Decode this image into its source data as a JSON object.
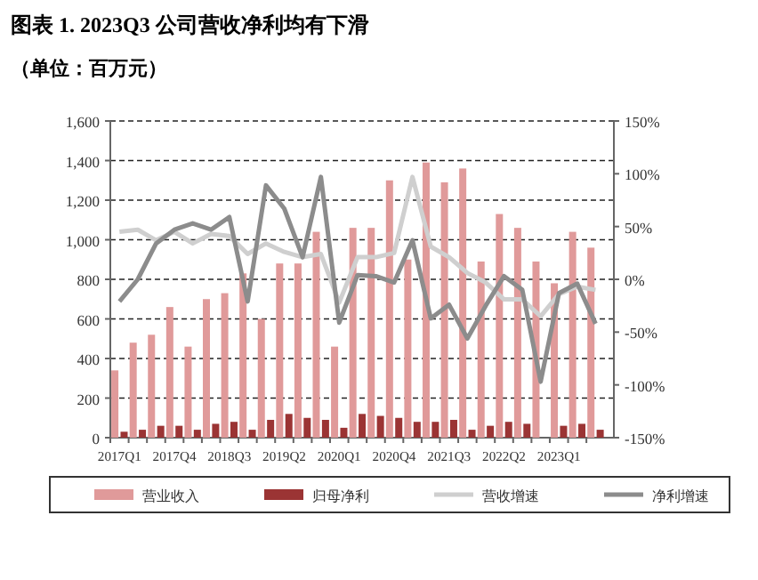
{
  "chart_data": {
    "type": "bar",
    "title": "图表 1. 2023Q3 公司营收净利均有下滑",
    "subtitle": "（单位：百万元）",
    "categories": [
      "2017Q1",
      null,
      null,
      "2017Q4",
      null,
      null,
      "2018Q3",
      null,
      null,
      "2019Q2",
      null,
      null,
      "2020Q1",
      null,
      null,
      "2020Q4",
      null,
      null,
      "2021Q3",
      null,
      null,
      "2022Q2",
      null,
      null,
      "2023Q1",
      null,
      null
    ],
    "series": [
      {
        "name": "营业收入",
        "color": "#e09a9a",
        "values": [
          340,
          480,
          520,
          660,
          460,
          700,
          730,
          830,
          600,
          880,
          880,
          1040,
          460,
          1060,
          1060,
          1300,
          900,
          1390,
          1290,
          1360,
          890,
          1130,
          1060,
          890,
          780,
          1040,
          960
        ]
      },
      {
        "name": "归母净利",
        "color": "#9b3434",
        "values": [
          30,
          40,
          60,
          60,
          40,
          70,
          80,
          40,
          90,
          120,
          100,
          90,
          50,
          120,
          110,
          100,
          80,
          80,
          90,
          40,
          60,
          80,
          70,
          0,
          60,
          70,
          40
        ]
      },
      {
        "name": "营收增速",
        "type": "line",
        "axis": "y2",
        "color": "#cfcfcf",
        "values": [
          45,
          47,
          37,
          45,
          34,
          43,
          41,
          24,
          34,
          26,
          21,
          24,
          -22,
          21,
          21,
          25,
          97,
          31,
          21,
          6,
          -3,
          -19,
          -19,
          -35,
          -14,
          -7,
          -10
        ]
      },
      {
        "name": "净利增速",
        "type": "line",
        "axis": "y2",
        "color": "#8c8c8c",
        "values": [
          -21,
          0,
          34,
          47,
          53,
          47,
          59,
          -21,
          89,
          67,
          21,
          97,
          -41,
          4,
          3,
          -3,
          37,
          -37,
          -24,
          -56,
          -25,
          3,
          -10,
          -97,
          -13,
          -4,
          -42
        ]
      }
    ],
    "ylim": [
      0,
      1600
    ],
    "yticks": [
      {
        "value": 0,
        "label": "0"
      },
      {
        "value": 200,
        "label": "200"
      },
      {
        "value": 400,
        "label": "400"
      },
      {
        "value": 600,
        "label": "600"
      },
      {
        "value": 800,
        "label": "800"
      },
      {
        "value": 1000,
        "label": "1,000"
      },
      {
        "value": 1200,
        "label": "1,200"
      },
      {
        "value": 1400,
        "label": "1,400"
      },
      {
        "value": 1600,
        "label": "1,600"
      }
    ],
    "y2lim": [
      -150,
      150
    ],
    "y2ticks": [
      {
        "value": -150,
        "label": "-150%"
      },
      {
        "value": -100,
        "label": "-100%"
      },
      {
        "value": -50,
        "label": "-50%"
      },
      {
        "value": 0,
        "label": "0%"
      },
      {
        "value": 50,
        "label": "50%"
      },
      {
        "value": 100,
        "label": "100%"
      },
      {
        "value": 150,
        "label": "150%"
      }
    ],
    "grid": "y",
    "legend": "bottom",
    "line_style": "solid",
    "marker": "none"
  }
}
